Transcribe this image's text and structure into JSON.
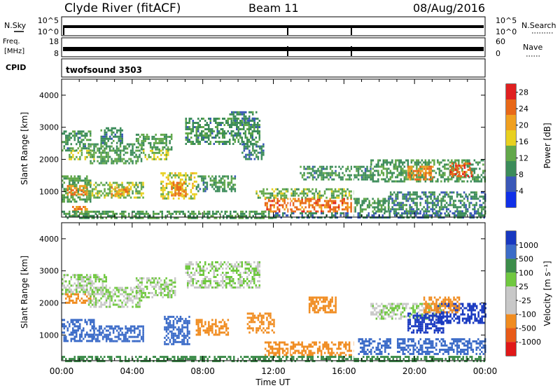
{
  "header": {
    "station": "Clyde River (fitACF)",
    "beam": "Beam 11",
    "date": "08/Aug/2016"
  },
  "status_panels": {
    "nsky": {
      "left_label": "N.Sky",
      "left_ticks": [
        "10^5",
        "10^0"
      ],
      "right_label": "N.Search",
      "right_ticks": [
        "10^5",
        "10^0"
      ]
    },
    "freq": {
      "left_label_line1": "Freq.",
      "left_label_line2": "[MHz]",
      "left_ticks": [
        "18",
        "8"
      ],
      "right_label": "Nave",
      "right_ticks": [
        "60",
        "0"
      ]
    },
    "cpid": {
      "label": "CPID",
      "value": "twofsound 3503"
    }
  },
  "colors": {
    "power_scale": [
      "#1030e8",
      "#3a58b8",
      "#3c8c5a",
      "#62a84a",
      "#e8d020",
      "#f0a020",
      "#e86818",
      "#e02020"
    ],
    "velocity_scale": [
      "#e01818",
      "#e85a18",
      "#f08c20",
      "#c8c8c8",
      "#c8c8c8",
      "#70c840",
      "#3c8c4a",
      "#3c6cc8",
      "#1838c0"
    ]
  },
  "chart_data": [
    {
      "type": "heatmap",
      "name": "power",
      "xlabel": "",
      "ylabel": "Slant Range [km]",
      "x_ticks": [
        "00:00",
        "04:00",
        "08:00",
        "12:00",
        "16:00",
        "20:00",
        "00:00"
      ],
      "xlim_hours": [
        0,
        24
      ],
      "y_ticks": [
        1000,
        2000,
        3000,
        4000
      ],
      "ylim": [
        200,
        4500
      ],
      "colorbar_label": "Power [dB]",
      "colorbar_ticks": [
        4,
        8,
        12,
        16,
        20,
        24,
        28
      ],
      "colorbar_range": [
        0,
        30
      ],
      "regions": [
        {
          "t0": 0.0,
          "t1": 1.6,
          "r0": 2300,
          "r1": 2900,
          "value": 10
        },
        {
          "t0": 0.4,
          "t1": 1.8,
          "r0": 2000,
          "r1": 2300,
          "value": 16
        },
        {
          "t0": 0.0,
          "t1": 1.6,
          "r0": 700,
          "r1": 1500,
          "value": 12
        },
        {
          "t0": 0.3,
          "t1": 1.4,
          "r0": 900,
          "r1": 1200,
          "value": 22
        },
        {
          "t0": 0.6,
          "t1": 1.4,
          "r0": 250,
          "r1": 550,
          "value": 22
        },
        {
          "t0": 1.4,
          "t1": 4.6,
          "r0": 800,
          "r1": 1300,
          "value": 14
        },
        {
          "t0": 2.8,
          "t1": 3.8,
          "r0": 850,
          "r1": 1150,
          "value": 21
        },
        {
          "t0": 1.5,
          "t1": 4.5,
          "r0": 1900,
          "r1": 2500,
          "value": 11
        },
        {
          "t0": 2.2,
          "t1": 3.4,
          "r0": 2500,
          "r1": 3000,
          "value": 9
        },
        {
          "t0": 4.2,
          "t1": 6.2,
          "r0": 2300,
          "r1": 2800,
          "value": 11
        },
        {
          "t0": 4.6,
          "t1": 6.0,
          "r0": 2000,
          "r1": 2300,
          "value": 15
        },
        {
          "t0": 5.6,
          "t1": 7.6,
          "r0": 800,
          "r1": 1600,
          "value": 16
        },
        {
          "t0": 6.2,
          "t1": 7.0,
          "r0": 900,
          "r1": 1300,
          "value": 23
        },
        {
          "t0": 7.0,
          "t1": 11.2,
          "r0": 2500,
          "r1": 3300,
          "value": 10
        },
        {
          "t0": 9.5,
          "t1": 11.0,
          "r0": 3100,
          "r1": 3500,
          "value": 9
        },
        {
          "t0": 7.6,
          "t1": 9.8,
          "r0": 1000,
          "r1": 1500,
          "value": 10
        },
        {
          "t0": 10.2,
          "t1": 11.4,
          "r0": 2000,
          "r1": 2500,
          "value": 9
        },
        {
          "t0": 11.5,
          "t1": 16.5,
          "r0": 350,
          "r1": 800,
          "value": 24
        },
        {
          "t0": 11.0,
          "t1": 16.5,
          "r0": 800,
          "r1": 1100,
          "value": 13
        },
        {
          "t0": 0.0,
          "t1": 12.0,
          "r0": 200,
          "r1": 400,
          "value": 11
        },
        {
          "t0": 13.5,
          "t1": 17.5,
          "r0": 1400,
          "r1": 1800,
          "value": 10
        },
        {
          "t0": 16.5,
          "t1": 18.5,
          "r0": 400,
          "r1": 800,
          "value": 11
        },
        {
          "t0": 17.5,
          "t1": 24.0,
          "r0": 1300,
          "r1": 2000,
          "value": 11
        },
        {
          "t0": 19.6,
          "t1": 21.0,
          "r0": 1400,
          "r1": 1800,
          "value": 22
        },
        {
          "t0": 22.0,
          "t1": 23.2,
          "r0": 1500,
          "r1": 1900,
          "value": 25
        },
        {
          "t0": 18.5,
          "t1": 24.0,
          "r0": 300,
          "r1": 1000,
          "value": 9
        },
        {
          "t0": 12.0,
          "t1": 24.0,
          "r0": 200,
          "r1": 350,
          "value": 8
        }
      ]
    },
    {
      "type": "heatmap",
      "name": "velocity",
      "xlabel": "Time UT",
      "ylabel": "Slant Range [km]",
      "x_ticks": [
        "00:00",
        "04:00",
        "08:00",
        "12:00",
        "16:00",
        "20:00",
        "00:00"
      ],
      "xlim_hours": [
        0,
        24
      ],
      "y_ticks": [
        1000,
        2000,
        3000,
        4000
      ],
      "ylim": [
        200,
        4500
      ],
      "colorbar_label": "Velocity [m s⁻¹]",
      "colorbar_ticks": [
        1000,
        500,
        100,
        25,
        -25,
        -100,
        -500,
        -1000
      ],
      "regions": [
        {
          "t0": 0.0,
          "t1": 2.5,
          "r0": 2300,
          "r1": 2900,
          "value": 0
        },
        {
          "t0": 0.2,
          "t1": 1.8,
          "r0": 2000,
          "r1": 2300,
          "value": -150
        },
        {
          "t0": 0.0,
          "t1": 1.8,
          "r0": 800,
          "r1": 1500,
          "value": 300
        },
        {
          "t0": 1.8,
          "t1": 4.6,
          "r0": 800,
          "r1": 1300,
          "value": 150
        },
        {
          "t0": 1.5,
          "t1": 4.5,
          "r0": 1900,
          "r1": 2500,
          "value": 0
        },
        {
          "t0": 4.2,
          "t1": 6.4,
          "r0": 2200,
          "r1": 2800,
          "value": 0
        },
        {
          "t0": 5.8,
          "t1": 7.2,
          "r0": 700,
          "r1": 1600,
          "value": 350
        },
        {
          "t0": 7.6,
          "t1": 9.4,
          "r0": 1000,
          "r1": 1500,
          "value": -300
        },
        {
          "t0": 7.0,
          "t1": 11.2,
          "r0": 2500,
          "r1": 3300,
          "value": 0
        },
        {
          "t0": 10.5,
          "t1": 12.0,
          "r0": 1100,
          "r1": 1700,
          "value": -200
        },
        {
          "t0": 11.5,
          "t1": 16.5,
          "r0": 350,
          "r1": 800,
          "value": -300
        },
        {
          "t0": 14.0,
          "t1": 15.5,
          "r0": 1700,
          "r1": 2200,
          "value": -250
        },
        {
          "t0": 16.8,
          "t1": 18.6,
          "r0": 400,
          "r1": 900,
          "value": 300
        },
        {
          "t0": 17.5,
          "t1": 21.5,
          "r0": 1500,
          "r1": 2000,
          "value": 0
        },
        {
          "t0": 19.6,
          "t1": 21.6,
          "r0": 1100,
          "r1": 1700,
          "value": 900
        },
        {
          "t0": 21.2,
          "t1": 24.0,
          "r0": 1400,
          "r1": 2000,
          "value": 1100
        },
        {
          "t0": 20.5,
          "t1": 22.5,
          "r0": 1700,
          "r1": 2200,
          "value": -300
        },
        {
          "t0": 19.0,
          "t1": 24.0,
          "r0": 400,
          "r1": 900,
          "value": 150
        },
        {
          "t0": 0.0,
          "t1": 24.0,
          "r0": 200,
          "r1": 350,
          "value": 60
        }
      ]
    }
  ]
}
